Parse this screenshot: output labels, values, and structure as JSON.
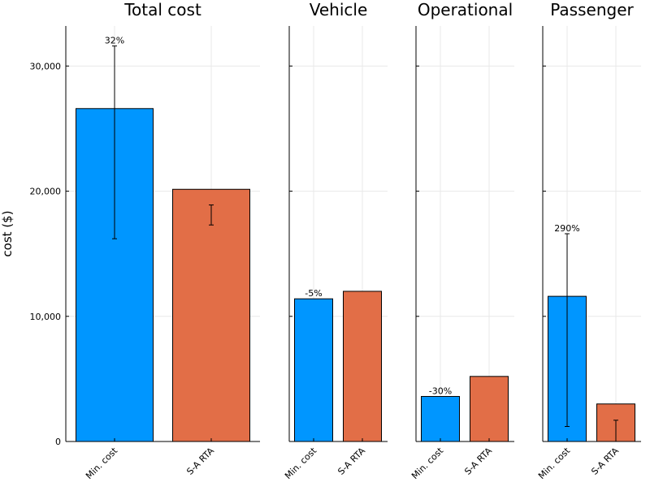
{
  "chart_data": {
    "type": "bar",
    "ylabel": "cost ($)",
    "ylim": [
      0,
      33200
    ],
    "yticks": [
      0,
      10000,
      20000,
      30000
    ],
    "ytick_labels": [
      "0",
      "10,000",
      "20,000",
      "30,000"
    ],
    "grid": true,
    "legend": "none",
    "colors": {
      "Min. cost": "#0096ff",
      "S-A RTA": "#e26e47"
    },
    "panels": [
      {
        "title": "Total cost",
        "categories": [
          "Min. cost",
          "S-A RTA"
        ],
        "values": [
          26600,
          20150
        ],
        "errors": [
          [
            16200,
            31600
          ],
          [
            17300,
            18900
          ]
        ],
        "annotation": {
          "category": "Min. cost",
          "text": "32%",
          "at": 31600
        }
      },
      {
        "title": "Vehicle",
        "categories": [
          "Min. cost",
          "S-A RTA"
        ],
        "values": [
          11400,
          12000
        ],
        "errors": [
          null,
          null
        ],
        "annotation": {
          "category": "Min. cost",
          "text": "-5%",
          "at": 11400
        }
      },
      {
        "title": "Operational",
        "categories": [
          "Min. cost",
          "S-A RTA"
        ],
        "values": [
          3600,
          5200
        ],
        "errors": [
          null,
          null
        ],
        "annotation": {
          "category": "Min. cost",
          "text": "-30%",
          "at": 3600
        }
      },
      {
        "title": "Passenger",
        "categories": [
          "Min. cost",
          "S-A RTA"
        ],
        "values": [
          11600,
          3000
        ],
        "errors": [
          [
            1200,
            16600
          ],
          [
            0,
            1700
          ]
        ],
        "annotation": {
          "category": "Min. cost",
          "text": "290%",
          "at": 16600
        }
      }
    ]
  }
}
